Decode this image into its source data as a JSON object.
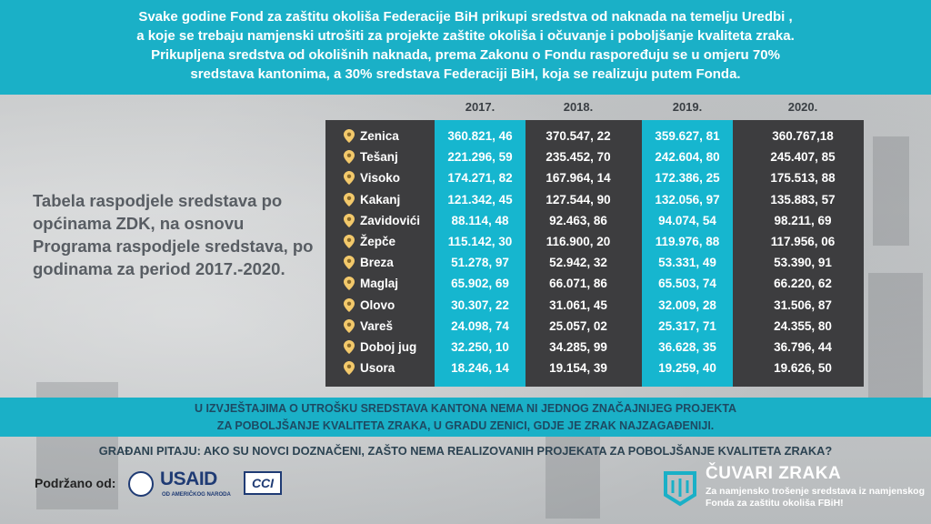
{
  "top_banner": {
    "lines": [
      "Svake godine Fond za zaštitu okoliša Federacije BiH prikupi sredstva od naknada na temelju Uredbi ,",
      "a koje se trebaju namjenski utrošiti za projekte zaštite okoliša i očuvanje i poboljšanje kvaliteta zraka.",
      "Prikupljena sredstva od okolišnih naknada, prema Zakonu o Fondu  raspoređuju se u omjeru 70%",
      "sredstava  kantonima, a 30% sredstava  Federaciji BiH, koja se realizuju putem Fonda."
    ]
  },
  "caption": "Tabela raspodjele sredstava po općinama ZDK, na osnovu Programa raspodjele sredstava, po godinama za period 2017.-2020.",
  "table": {
    "years": [
      "2017.",
      "2018.",
      "2019.",
      "2020."
    ],
    "rows": [
      {
        "city": "Zenica",
        "values": [
          "360.821, 46",
          "370.547, 22",
          "359.627, 81",
          "360.767,18"
        ]
      },
      {
        "city": "Tešanj",
        "values": [
          "221.296, 59",
          "235.452, 70",
          "242.604, 80",
          "245.407, 85"
        ]
      },
      {
        "city": "Visoko",
        "values": [
          "174.271, 82",
          "167.964, 14",
          "172.386, 25",
          "175.513, 88"
        ]
      },
      {
        "city": "Kakanj",
        "values": [
          "121.342, 45",
          "127.544, 90",
          "132.056, 97",
          "135.883, 57"
        ]
      },
      {
        "city": "Zavidovići",
        "values": [
          "88.114, 48",
          "92.463, 86",
          "94.074, 54",
          "98.211, 69"
        ]
      },
      {
        "city": "Žepče",
        "values": [
          "115.142, 30",
          "116.900, 20",
          "119.976, 88",
          "117.956, 06"
        ]
      },
      {
        "city": "Breza",
        "values": [
          "51.278, 97",
          "52.942, 32",
          "53.331, 49",
          "53.390, 91"
        ]
      },
      {
        "city": "Maglaj",
        "values": [
          "65.902, 69",
          "66.071, 86",
          "65.503, 74",
          "66.220, 62"
        ]
      },
      {
        "city": "Olovo",
        "values": [
          "30.307, 22",
          "31.061, 45",
          "32.009, 28",
          "31.506, 87"
        ]
      },
      {
        "city": "Vareš",
        "values": [
          "24.098, 74",
          "25.057, 02",
          "25.317, 71",
          "24.355, 80"
        ]
      },
      {
        "city": "Doboj jug",
        "values": [
          "32.250, 10",
          "34.285, 99",
          "36.628, 35",
          "36.796, 44"
        ]
      },
      {
        "city": "Usora",
        "values": [
          "18.246, 14",
          "19.154, 39",
          "19.259, 40",
          "19.626, 50"
        ]
      }
    ],
    "highlight_color": "#16b6cf",
    "panel_color": "#3d3d3f",
    "pin_icon": "map-pin-icon"
  },
  "bottom_banner": {
    "lines": [
      "U IZVJEŠTAJIMA O UTROŠKU SREDSTAVA KANTONA NEMA  NI  JEDNOG ZNAČAJNIJEG PROJEKTA",
      "ZA POBOLJŠANJE KVALITETA ZRAKA, U GRADU ZENICI, GDJE JE ZRAK NAJZAGAĐENIJI."
    ]
  },
  "question": "GRAĐANI PITAJU: AKO SU NOVCI DOZNAČENI, ZAŠTO NEMA REALIZOVANIH PROJEKATA ZA POBOLJŠANJE KVALITETA ZRAKA?",
  "footer": {
    "supported_label": "Podržano od:",
    "usaid_logo_text": "USAID",
    "usaid_sub": "OD AMERIČKOG NARODA",
    "cci_logo_text": "CCI",
    "cuvari_title": "ČUVARI ZRAKA",
    "cuvari_sub": "Za namjensko trošenje sredstava iz namjenskog Fonda za zaštitu okoliša FBiH!"
  },
  "colors": {
    "accent": "#1ab0c7",
    "caption": "#585d63"
  }
}
